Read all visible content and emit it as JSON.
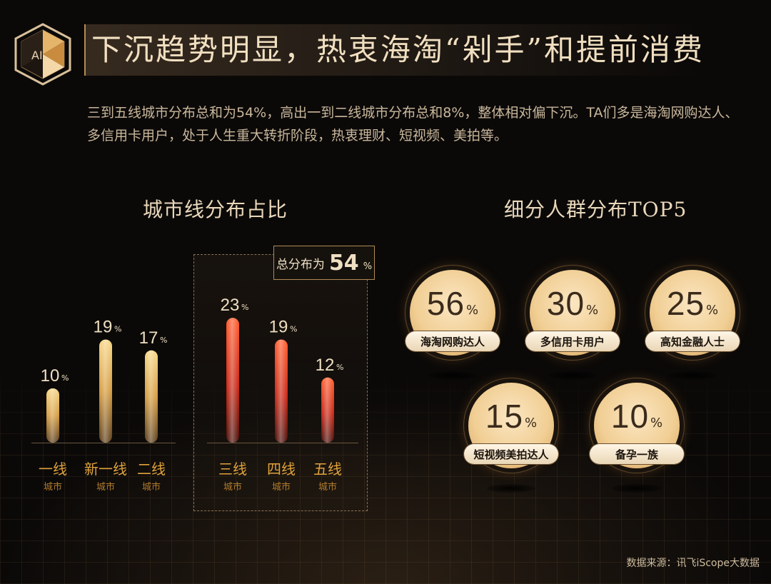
{
  "header": {
    "logo_text": "AI",
    "title": "下沉趋势明显，热衷海淘“剁手”和提前消费",
    "description": "三到五线城市分布总和为54%，高出一到二线城市分布总和8%，整体相对偏下沉。TA们多是海淘网购达人、多信用卡用户，处于人生重大转折阶段，热衷理财、短视频、美拍等。"
  },
  "left_section": {
    "title": "城市线分布占比"
  },
  "right_section": {
    "title": "细分人群分布TOP5"
  },
  "badge": {
    "label": "总分布为",
    "value": "54",
    "unit": "%"
  },
  "source": "数据来源：讯飞iScope大数据",
  "colors": {
    "gold": "#e7b04c",
    "red": "#d8321c",
    "accent": "#b58b4e"
  },
  "chart_data": [
    {
      "type": "bar",
      "title": "城市线分布占比",
      "categories": [
        "一线",
        "新一线",
        "二线",
        "三线",
        "四线",
        "五线"
      ],
      "sublabels": [
        "城市",
        "城市",
        "城市",
        "城市",
        "城市",
        "城市"
      ],
      "values": [
        10,
        19,
        17,
        23,
        19,
        12
      ],
      "unit": "%",
      "highlight": [
        false,
        false,
        false,
        true,
        true,
        true
      ]
    },
    {
      "type": "table",
      "title": "细分人群分布TOP5",
      "items": [
        {
          "label": "海淘网购达人",
          "value": 56,
          "unit": "%"
        },
        {
          "label": "多信用卡用户",
          "value": 30,
          "unit": "%"
        },
        {
          "label": "高知金融人士",
          "value": 25,
          "unit": "%"
        },
        {
          "label": "短视频美拍达人",
          "value": 15,
          "unit": "%"
        },
        {
          "label": "备孕一族",
          "value": 10,
          "unit": "%"
        }
      ]
    }
  ]
}
